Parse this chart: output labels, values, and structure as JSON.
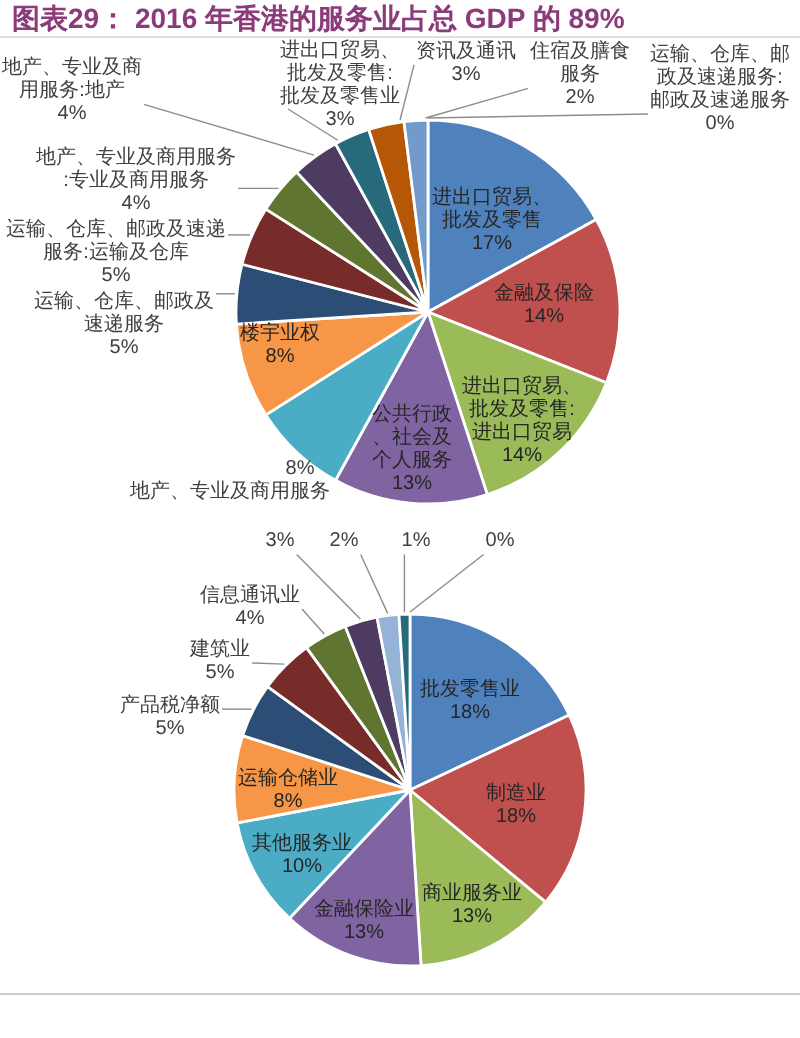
{
  "chart_data": [
    {
      "type": "pie",
      "title": "图表29： 2016 年香港的服务业占总 GDP 的 89%",
      "categories": [
        "进出口贸易、批发及零售",
        "金融及保险",
        "进出口贸易、批发及零售:进出口贸易",
        "公共行政、社会及个人服务",
        "地产、专业及商用服务",
        "楼宇业权",
        "运输、仓库、邮政及速递服务",
        "运输、仓库、邮政及速递服务:运输及仓库",
        "地产、专业及商用服务:专业及商用服务",
        "地产、专业及商用服务:地产",
        "进出口贸易、批发及零售:批发及零售业",
        "资讯及通讯",
        "住宿及膳食服务",
        "运输、仓库、邮政及速递服务:邮政及速递服务"
      ],
      "values": [
        17,
        14,
        14,
        13,
        8,
        8,
        5,
        5,
        4,
        4,
        3,
        3,
        2,
        0
      ],
      "value_labels": [
        "17%",
        "14%",
        "14%",
        "13%",
        "8%",
        "8%",
        "5%",
        "5%",
        "4%",
        "4%",
        "3%",
        "3%",
        "2%",
        "0%"
      ],
      "colors": [
        "#4f81bd",
        "#c0504d",
        "#9bbb59",
        "#8064a2",
        "#4bacc6",
        "#f79646",
        "#2c4d75",
        "#772c2a",
        "#5f7530",
        "#4d3b62",
        "#276a7c",
        "#b65708",
        "#729aca",
        "#dbe5f1"
      ]
    },
    {
      "type": "pie",
      "categories": [
        "批发零售业",
        "制造业",
        "商业服务业",
        "金融保险业",
        "其他服务业",
        "运输仓储业",
        "产品税净额",
        "建筑业",
        "信息通讯业",
        null,
        null,
        null,
        null
      ],
      "values": [
        18,
        18,
        13,
        13,
        10,
        8,
        5,
        5,
        4,
        3,
        2,
        1,
        0
      ],
      "value_labels": [
        "18%",
        "18%",
        "13%",
        "13%",
        "10%",
        "8%",
        "5%",
        "5%",
        "4%",
        "3%",
        "2%",
        "1%",
        "0%"
      ],
      "colors": [
        "#4f81bd",
        "#c0504d",
        "#9bbb59",
        "#8064a2",
        "#4bacc6",
        "#f79646",
        "#2c4d75",
        "#772c2a",
        "#5f7530",
        "#4d3b62",
        "#95b3d7",
        "#276a7c",
        "#e46c0a"
      ]
    }
  ]
}
